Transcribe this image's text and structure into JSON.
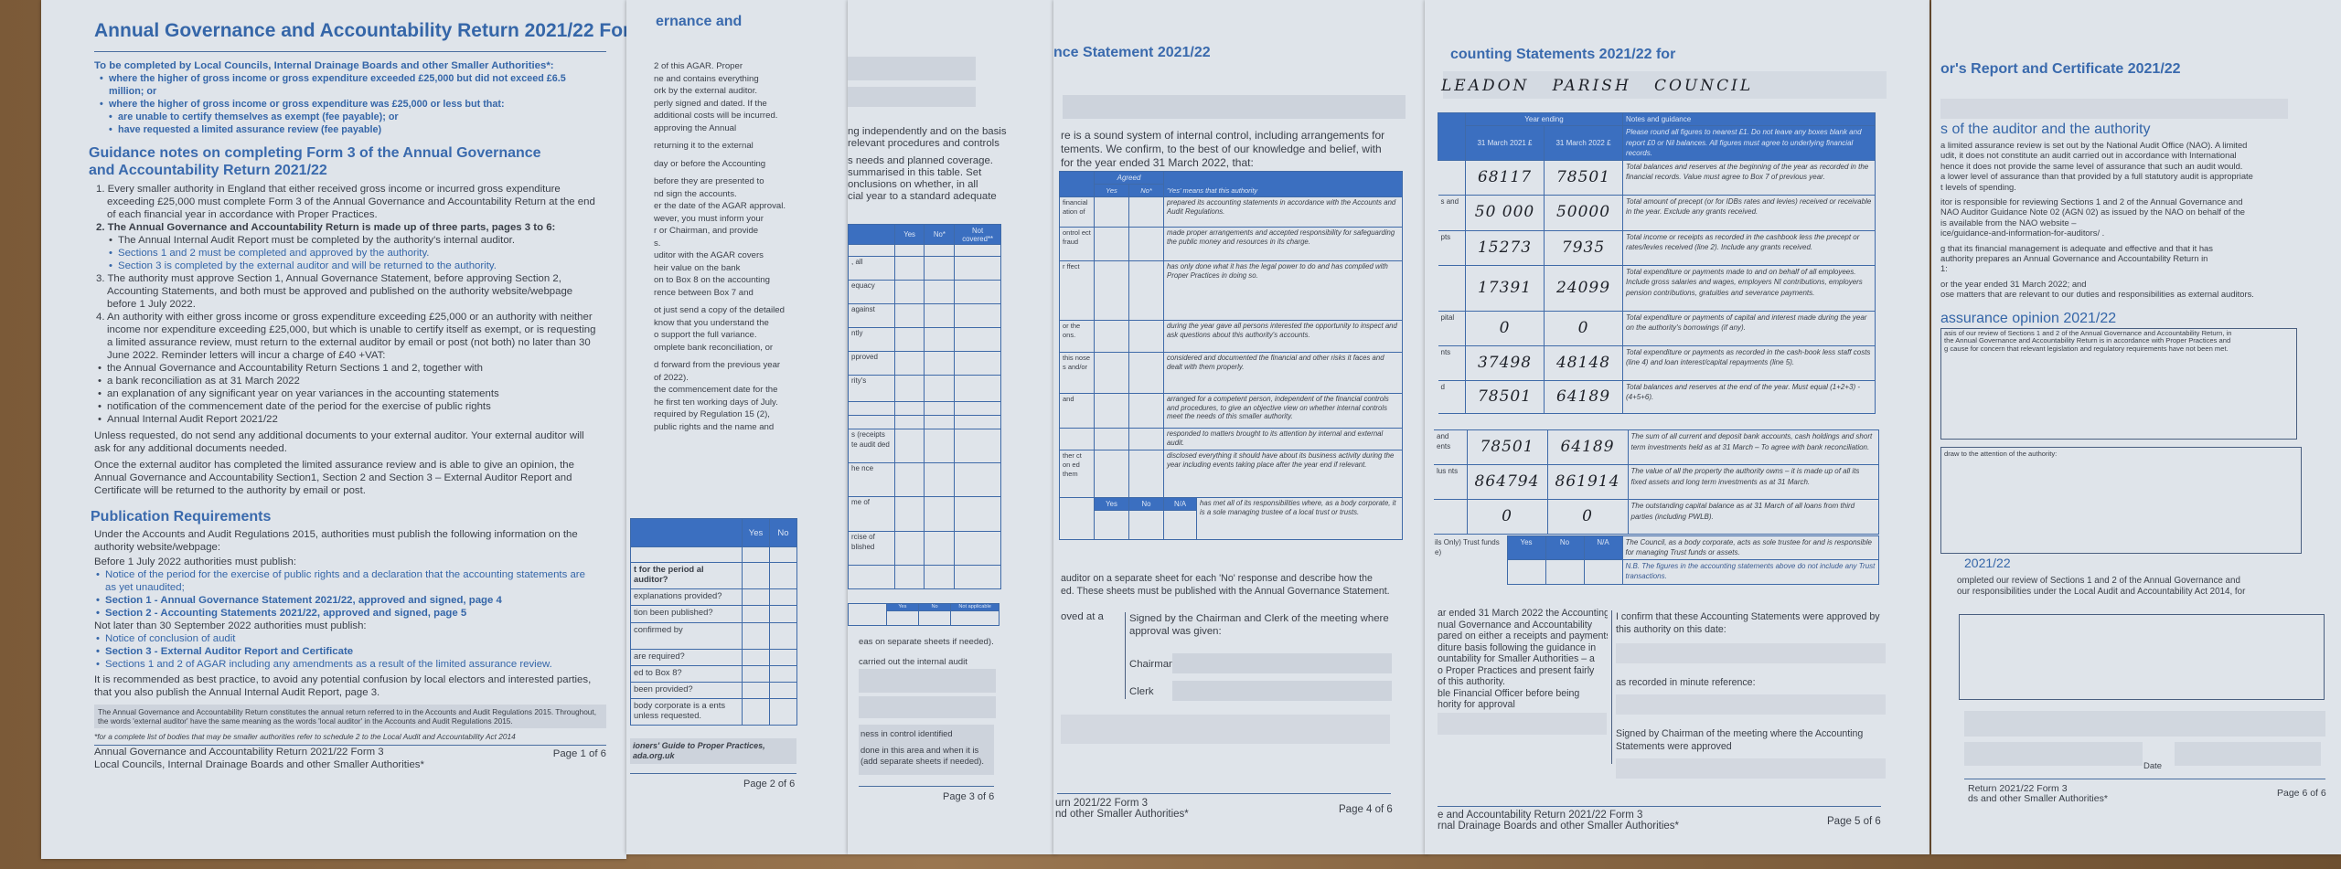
{
  "page1": {
    "title": "Annual Governance and Accountability Return 2021/22 Form 3",
    "intro": "To be completed by Local Councils, Internal Drainage Boards and other Smaller Authorities*:",
    "bullets": [
      "where the higher of gross income or gross expenditure exceeded £25,000 but did not exceed £6.5 million; or",
      "where the higher of gross income or gross expenditure was £25,000 or less but that:"
    ],
    "sub_bullets": [
      "are unable to certify themselves as exempt (fee payable); or",
      "have requested a limited assurance review (fee payable)"
    ],
    "guidance_heading": "Guidance notes on completing Form 3 of the Annual Governance and Accountability Return 2021/22",
    "item1": "1. Every smaller authority in England that either received gross income or incurred gross expenditure exceeding £25,000 must complete Form 3 of the Annual Governance and Accountability Return at the end of each financial year in accordance with Proper Practices.",
    "item2": "2. The Annual Governance and Accountability Return is made up of three parts, pages 3 to 6:",
    "item2_subs": [
      "The Annual Internal Audit Report must be completed by the authority's internal auditor.",
      "Sections 1 and 2 must be completed and approved by the authority.",
      "Section 3 is completed by the external auditor and will be returned to the authority."
    ],
    "item3": "3. The authority must approve Section 1, Annual Governance Statement, before approving Section 2, Accounting Statements, and both must be approved and published on the authority website/webpage before 1 July 2022.",
    "item4": "4. An authority with either gross income or gross expenditure exceeding £25,000 or an authority with neither income nor expenditure exceeding £25,000, but which is unable to certify itself as exempt, or is requesting a limited assurance review, must return to the external auditor by email or post (not both) no later than 30 June 2022. Reminder letters will incur a charge of £40 +VAT:",
    "item4_subs": [
      "the Annual Governance and Accountability Return Sections 1 and 2, together with",
      "a bank reconciliation as at 31 March 2022",
      "an explanation of any significant year on year variances in the accounting statements",
      "notification of the commencement date of the period for the exercise of public rights",
      "Annual Internal Audit Report 2021/22"
    ],
    "para_unless": "Unless requested, do not send any additional documents to your external auditor. Your external auditor will ask for any additional documents needed.",
    "para_once": "Once the external auditor has completed the limited assurance review and is able to give an opinion, the Annual Governance and Accountability Section1, Section 2 and Section 3 – External Auditor Report and Certificate will be returned to the authority by email or post.",
    "pub_heading": "Publication Requirements",
    "pub_intro": "Under the Accounts and Audit Regulations 2015, authorities must publish the following information on the authority website/webpage:",
    "before_label": "Before 1 July 2022 authorities must publish:",
    "before_items": [
      "Notice of the period for the exercise of public rights and a declaration that the accounting statements are as yet unaudited;",
      "Section 1 - Annual Governance Statement 2021/22, approved and signed, page 4",
      "Section 2 - Accounting Statements 2021/22, approved and signed, page 5"
    ],
    "later_label": "Not later than 30 September 2022 authorities must publish:",
    "later_items": [
      "Notice of conclusion of audit",
      "Section 3 - External Auditor Report and Certificate",
      "Sections 1 and 2 of AGAR including any amendments as a result of the limited assurance review."
    ],
    "recommend": "It is recommended as best practice, to avoid any potential confusion by local electors and interested parties, that you also publish the Annual Internal Audit Report, page 3.",
    "box_note": "The Annual Governance and Accountability Return constitutes the annual return referred to in the Accounts and Audit Regulations 2015. Throughout, the words 'external auditor' have the same meaning as the words 'local auditor' in the Accounts and Audit Regulations 2015.",
    "footnote": "*for a complete list of bodies that may be smaller authorities refer to schedule 2 to the Local Audit and Accountability Act 2014",
    "footer_line1": "Annual Governance and Accountability Return 2021/22 Form 3",
    "footer_line2": "Local Councils, Internal Drainage Boards and other Smaller Authorities*",
    "page_no": "Page 1 of 6"
  },
  "page2": {
    "title": "ernance and",
    "lines": [
      "2 of this AGAR. Proper",
      "ne and contains everything",
      "ork by the external auditor.",
      "perly signed and dated. If the",
      "additional costs will be incurred.",
      "approving the Annual",
      "",
      "returning it to the external",
      "",
      "day or before the Accounting",
      "",
      "before they are presented to",
      "nd sign the accounts.",
      "er the date of the AGAR approval.",
      "wever, you must inform your",
      "r or Chairman, and provide",
      "s.",
      "uditor with the AGAR covers",
      "heir value on the bank",
      "on to Box 8 on the accounting",
      "rence between Box 7 and",
      "",
      "ot just send a copy of the detailed",
      "know that you understand the",
      "o support the full variance.",
      "omplete bank reconciliation, or",
      "",
      "d forward from the previous year",
      "of 2022).",
      "the commencement date for the",
      "he first ten working days of July.",
      "required by Regulation 15 (2),",
      "public rights and the name and"
    ],
    "table_headers": [
      "",
      "Yes",
      "No"
    ],
    "table_rows": [
      "",
      "t for the period al auditor?",
      "explanations provided?",
      "tion been published?",
      "confirmed by",
      "are required?",
      "ed to Box 8?",
      "been provided?",
      "body corporate is a ents unless requested."
    ],
    "box_text": "ioners' Guide to Proper Practices, ada.org.uk",
    "page_no": "Page 2 of 6"
  },
  "page3": {
    "lines": [
      "ng independently and on the basis",
      "relevant procedures and controls",
      "",
      "s needs and planned coverage.",
      "summarised in this table. Set",
      "onclusions on whether, in all",
      "cial year to a standard adequate"
    ],
    "table_headers": [
      "",
      "Yes",
      "No*",
      "Not covered**"
    ],
    "table_rows": [
      "",
      ", all",
      "equacy",
      "against",
      "ntly",
      "pproved",
      "rity's",
      "",
      "",
      "s (receipts te audit ded",
      "he nce",
      "me of",
      "rcise of blished",
      ""
    ],
    "table2_headers": [
      "",
      "Yes",
      "No",
      "Not applicable"
    ],
    "after_lines": [
      "eas on separate sheets if needed).",
      "carried out the internal audit"
    ],
    "box_lines": [
      "ness in control identified",
      "",
      "done in this area and when it is",
      "(add separate sheets if needed)."
    ],
    "page_no": "Page 3 of 6"
  },
  "page4": {
    "title": "nce Statement 2021/22",
    "intro": [
      "re is a sound system of internal control, including arrangements for",
      "tements. We confirm, to the best of our knowledge and belief, with",
      "for the year ended 31 March 2022, that:"
    ],
    "agreed_label": "Agreed",
    "yes_label": "Yes",
    "no_label": "No*",
    "means_label": "'Yes' means that this authority",
    "rows": [
      {
        "left": "financial ation of",
        "text": "prepared its accounting statements in accordance with the Accounts and Audit Regulations."
      },
      {
        "left": "ontrol ect fraud",
        "text": "made proper arrangements and accepted responsibility for safeguarding the public money and resources in its charge."
      },
      {
        "left": "r ffect",
        "text": "has only done what it has the legal power to do and has complied with Proper Practices in doing so."
      },
      {
        "left": "or the ons.",
        "text": "during the year gave all persons interested the opportunity to inspect and ask questions about this authority's accounts."
      },
      {
        "left": "this nose s and/or",
        "text": "considered and documented the financial and other risks it faces and dealt with them properly."
      },
      {
        "left": "and",
        "text": "arranged for a competent person, independent of the financial controls and procedures, to give an objective view on whether internal controls meet the needs of this smaller authority."
      },
      {
        "left": "",
        "text": "responded to matters brought to its attention by internal and external audit."
      },
      {
        "left": "ther ct on ed them",
        "text": "disclosed everything it should have about its business activity during the year including events taking place after the year end if relevant."
      }
    ],
    "trust_headers": [
      "Yes",
      "No",
      "N/A"
    ],
    "trust_text": "has met all of its responsibilities where, as a body corporate, it is a sole managing trustee of a local trust or trusts.",
    "after": [
      "auditor on a separate sheet for each 'No' response and describe how the",
      "ed. These sheets must be published with the Annual Governance Statement."
    ],
    "approved_left": "oved at a",
    "signed_text": "Signed by the Chairman and Clerk of the meeting where approval was given:",
    "chairman": "Chairman",
    "clerk": "Clerk",
    "footer_line1": "urn 2021/22 Form 3",
    "footer_line2": "nd other Smaller Authorities*",
    "page_no": "Page 4 of 6"
  },
  "page5": {
    "title": "counting Statements 2021/22 for",
    "authority_name": "LEADON   PARISH   COUNCIL",
    "year_ending": "Year ending",
    "col_2021": "31 March 2021 £",
    "col_2022": "31 March 2022 £",
    "notes_heading": "Notes and guidance",
    "notes_intro": "Please round all figures to nearest £1. Do not leave any boxes blank and report £0 or Nil balances. All figures must agree to underlying financial records.",
    "rows": [
      {
        "left": "",
        "y2021": "68117",
        "y2022": "78501",
        "note": "Total balances and reserves at the beginning of the year as recorded in the financial records. Value must agree to Box 7 of previous year."
      },
      {
        "left": "s and",
        "y2021": "50 000",
        "y2022": "50000",
        "note": "Total amount of precept (or for IDBs rates and levies) received or receivable in the year. Exclude any grants received."
      },
      {
        "left": "pts",
        "y2021": "15273",
        "y2022": "7935",
        "note": "Total income or receipts as recorded in the cashbook less the precept or rates/levies received (line 2). Include any grants received."
      },
      {
        "left": "",
        "y2021": "17391",
        "y2022": "24099",
        "note": "Total expenditure or payments made to and on behalf of all employees. Include gross salaries and wages, employers NI contributions, employers pension contributions, gratuities and severance payments."
      },
      {
        "left": "pital",
        "y2021": "0",
        "y2022": "0",
        "note": "Total expenditure or payments of capital and interest made during the year on the authority's borrowings (if any)."
      },
      {
        "left": "nts",
        "y2021": "37498",
        "y2022": "48148",
        "note": "Total expenditure or payments as recorded in the cash-book less staff costs (line 4) and loan interest/capital repayments (line 5)."
      },
      {
        "left": "d",
        "y2021": "78501",
        "y2022": "64189",
        "note": "Total balances and reserves at the end of the year. Must equal (1+2+3) - (4+5+6)."
      }
    ],
    "rows2": [
      {
        "left": "and ents",
        "y2021": "78501",
        "y2022": "64189",
        "note": "The sum of all current and deposit bank accounts, cash holdings and short term investments held as at 31 March – To agree with bank reconciliation."
      },
      {
        "left": "lus nts",
        "y2021": "864794",
        "y2022": "861914",
        "note": "The value of all the property the authority owns – it is made up of all its fixed assets and long term investments as at 31 March."
      },
      {
        "left": "",
        "y2021": "0",
        "y2022": "0",
        "note": "The outstanding capital balance as at 31 March of all loans from third parties (including PWLB)."
      }
    ],
    "trust_left": "ils Only) Trust funds e)",
    "trust_headers": [
      "Yes",
      "No",
      "N/A"
    ],
    "trust_note1": "The Council, as a body corporate, acts as sole trustee for and is responsible for managing Trust funds or assets.",
    "trust_note2": "N.B. The figures in the accounting statements above do not include any Trust transactions.",
    "left_text": [
      "ar ended 31 March 2022 the Accounting",
      "nual Governance and Accountability",
      "pared on either a receipts and payments",
      "diture basis following the guidance in",
      "ountability for Smaller Authorities – a",
      "o Proper Practices and present fairly",
      "of this authority.",
      "ble Financial Officer before being",
      "hority for approval"
    ],
    "confirm_text": "I confirm that these Accounting Statements were approved by this authority on this date:",
    "minute_ref": "as recorded in minute reference:",
    "signed_text": "Signed by Chairman of the meeting where the Accounting Statements were approved",
    "footer_line1": "e and Accountability Return 2021/22 Form 3",
    "footer_line2": "rnal Drainage Boards and other Smaller Authorities*",
    "page_no": "Page 5 of 6"
  },
  "page6": {
    "title": "or's Report and Certificate 2021/22",
    "heading": "s of the auditor and the authority",
    "para1": [
      "a limited assurance review is set out by the National Audit Office (NAO). A limited",
      "udit, it does not constitute an audit carried out in accordance with International",
      "hence it does not provide the same level of assurance that such an audit would.",
      "a lower level of assurance than that provided by a full statutory audit is appropriate",
      "t levels of spending."
    ],
    "para2": [
      "itor is responsible for reviewing Sections 1 and 2 of the Annual Governance and",
      "NAO Auditor Guidance Note 02 (AGN 02) as issued by the NAO on behalf of the",
      "is available from the NAO website –",
      "ice/guidance-and-information-for-auditors/ ."
    ],
    "para3": [
      "g that its financial management is adequate and effective and that it has",
      "authority prepares an Annual Governance and Accountability Return in",
      "1:"
    ],
    "para4": [
      "or the year ended 31 March 2022; and",
      "ose matters that are relevant to our duties and responsibilities as external auditors."
    ],
    "opinion_heading": "assurance opinion 2021/22",
    "opinion_box": [
      "asis of our review of Sections 1 and 2 of the Annual Governance and Accountability Return, in",
      "the Annual Governance and Accountability Return is in accordance with Proper Practices and",
      "g cause for concern that relevant legislation and regulatory requirements have not been met."
    ],
    "attention_text": "draw to the attention of the authority:",
    "cert_heading": "2021/22",
    "cert_text": [
      "ompleted our review of Sections 1 and 2 of the Annual Governance and",
      "our responsibilities under the Local Audit and Accountability Act 2014, for"
    ],
    "date_label": "Date",
    "footer_line1": "Return 2021/22 Form 3",
    "footer_line2": "ds and other Smaller Authorities*",
    "page_no": "Page 6 of 6"
  },
  "colors": {
    "brand_blue": "#3566a8",
    "header_blue": "#3b6fc0",
    "paper": "#dfe4ea",
    "wood": "#8a6a45"
  }
}
